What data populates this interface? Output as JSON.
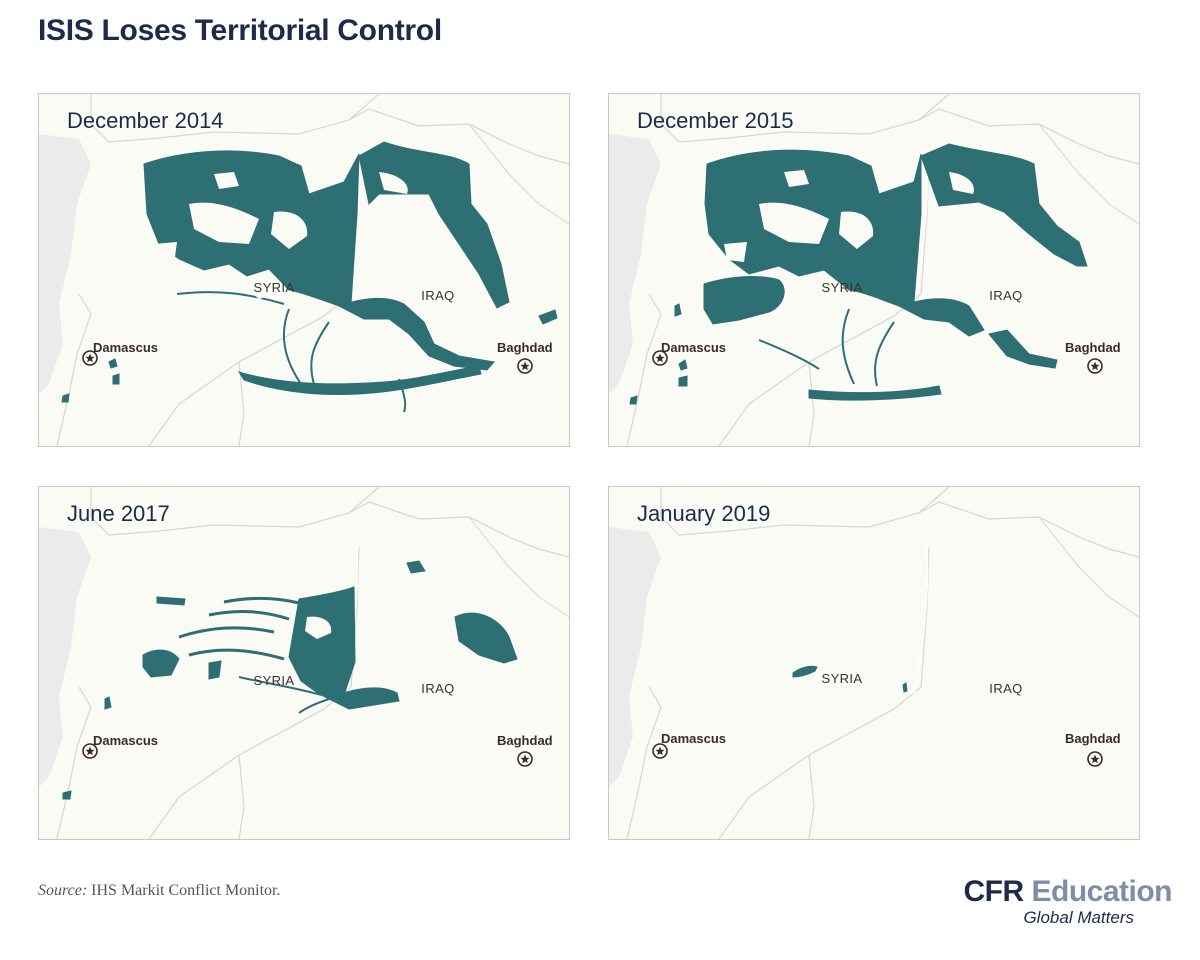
{
  "title": "ISIS Loses Territorial Control",
  "map": {
    "countries": [
      "SYRIA",
      "IRAQ"
    ],
    "cities": [
      "Damascus",
      "Baghdad"
    ],
    "colors": {
      "territory": "#2d6f73",
      "land": "#fbfbf6",
      "sea": "#ebebeb",
      "border": "#d6d6d0",
      "city_marker": "#3a2a2a"
    },
    "panels": [
      {
        "date": "December 2014",
        "extent": "large"
      },
      {
        "date": "December 2015",
        "extent": "large"
      },
      {
        "date": "June 2017",
        "extent": "reduced"
      },
      {
        "date": "January 2019",
        "extent": "minimal"
      }
    ]
  },
  "source": {
    "label": "Source:",
    "text": " IHS Markit Conflict Monitor."
  },
  "brand": {
    "cfr": "CFR",
    "education": " Education",
    "tagline": "Global Matters"
  }
}
